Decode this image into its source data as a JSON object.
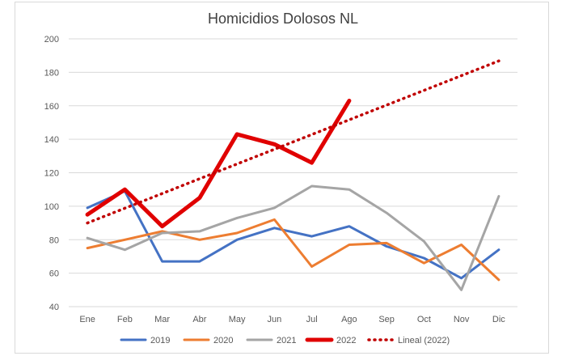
{
  "chart_data": {
    "type": "line",
    "title": "Homicidios Dolosos NL",
    "xlabel": "",
    "ylabel": "",
    "categories": [
      "Ene",
      "Feb",
      "Mar",
      "Abr",
      "May",
      "Jun",
      "Jul",
      "Ago",
      "Sep",
      "Oct",
      "Nov",
      "Dic"
    ],
    "ylim": [
      40,
      200
    ],
    "yticks": [
      40,
      60,
      80,
      100,
      120,
      140,
      160,
      180,
      200
    ],
    "grid": true,
    "legend_position": "bottom",
    "series": [
      {
        "name": "2019",
        "color": "#4472C4",
        "style": "solid",
        "values": [
          99,
          109,
          67,
          67,
          80,
          87,
          82,
          88,
          76,
          69,
          57,
          74
        ]
      },
      {
        "name": "2020",
        "color": "#ED7D31",
        "style": "solid",
        "values": [
          75,
          80,
          85,
          80,
          84,
          92,
          64,
          77,
          78,
          66,
          77,
          56
        ]
      },
      {
        "name": "2021",
        "color": "#A5A5A5",
        "style": "solid",
        "values": [
          81,
          74,
          84,
          85,
          93,
          99,
          112,
          110,
          96,
          79,
          50,
          106
        ]
      },
      {
        "name": "2022",
        "color": "#E00000",
        "style": "bold",
        "values": [
          95,
          110,
          88,
          105,
          143,
          137,
          126,
          163,
          null,
          null,
          null,
          null
        ]
      },
      {
        "name": "Lineal (2022)",
        "color": "#C00000",
        "style": "dotted",
        "values": [
          90,
          98.8,
          107.6,
          116.4,
          125.2,
          134,
          142.8,
          151.6,
          160.4,
          169.2,
          178,
          186.8
        ]
      }
    ]
  }
}
